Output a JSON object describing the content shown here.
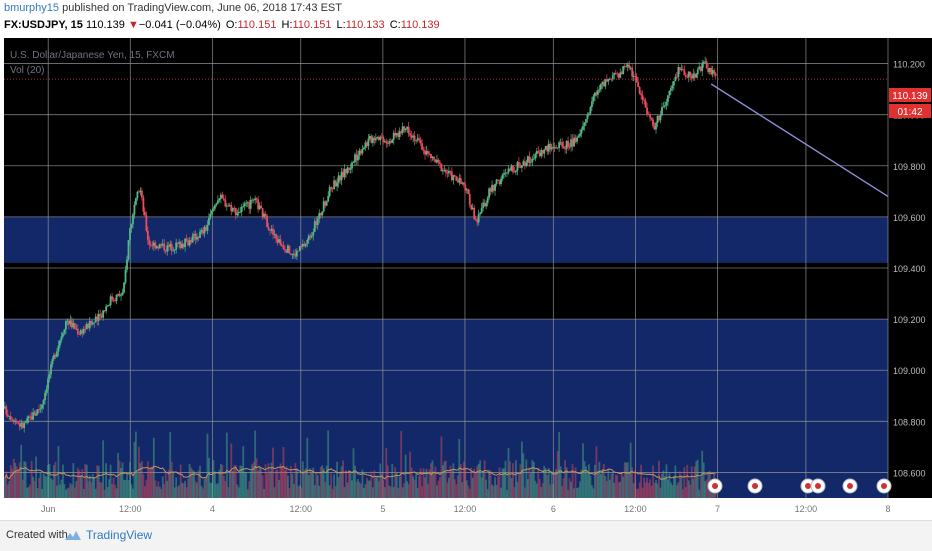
{
  "header": {
    "author": "bmurphy15",
    "published": " published on TradingView.com, June 06, 2018 17:43 EST",
    "symbol": "FX:USDJPY, 15",
    "last": "110.139",
    "change_arrow": "▼",
    "change": "−0.041 (−0.04%)",
    "o_label": "O:",
    "o_value": "110.151",
    "h_label": "H:",
    "h_value": "110.151",
    "l_label": "L:",
    "l_value": "110.133",
    "c_label": "C:",
    "c_value": "110.139"
  },
  "legend": {
    "line1": "U.S. Dollar/Japanese Yen, 15, FXCM",
    "line2": "Vol (20)"
  },
  "price_badge": "110.139",
  "time_badge": "01:42",
  "footer": {
    "created_with": "Created with",
    "brand": "TradingView"
  },
  "colors": {
    "background": "#000000",
    "bull": "#53b987",
    "bear": "#eb4d5c",
    "zone": "#142a6e",
    "grid": "#9a9a9a",
    "trendline": "#8a8fd6",
    "price_line": "#e04040",
    "vol_ma": "#c8935a",
    "accent": "#2f7ac2"
  },
  "chart_data": {
    "type": "candlestick",
    "title": "U.S. Dollar/Japanese Yen, 15, FXCM",
    "ylim": [
      108.5,
      110.3
    ],
    "y_ticks": [
      {
        "value": 110.2,
        "label": "110.200"
      },
      {
        "value": 110.0,
        "label": "110.000"
      },
      {
        "value": 109.8,
        "label": "109.800"
      },
      {
        "value": 109.6,
        "label": "109.600"
      },
      {
        "value": 109.4,
        "label": "109.400"
      },
      {
        "value": 109.2,
        "label": "109.200"
      },
      {
        "value": 109.0,
        "label": "109.000"
      },
      {
        "value": 108.8,
        "label": "108.800"
      },
      {
        "value": 108.6,
        "label": "108.600"
      }
    ],
    "x_ticks": [
      {
        "t": 0.35,
        "label": "Jun"
      },
      {
        "t": 1.0,
        "label": "12:00"
      },
      {
        "t": 1.65,
        "label": "4"
      },
      {
        "t": 2.35,
        "label": "12:00"
      },
      {
        "t": 3.0,
        "label": "5"
      },
      {
        "t": 3.65,
        "label": "12:00"
      },
      {
        "t": 4.35,
        "label": "6"
      },
      {
        "t": 5.0,
        "label": "12:00"
      },
      {
        "t": 5.65,
        "label": "7"
      },
      {
        "t": 6.35,
        "label": "12:00"
      },
      {
        "t": 7.0,
        "label": "8"
      }
    ],
    "grid": true,
    "last_price": 110.139,
    "path_points": [
      [
        0.0,
        108.85
      ],
      [
        0.15,
        108.78
      ],
      [
        0.3,
        108.86
      ],
      [
        0.4,
        109.05
      ],
      [
        0.5,
        109.2
      ],
      [
        0.6,
        109.15
      ],
      [
        0.75,
        109.2
      ],
      [
        0.85,
        109.28
      ],
      [
        0.95,
        109.3
      ],
      [
        1.0,
        109.55
      ],
      [
        1.08,
        109.72
      ],
      [
        1.15,
        109.5
      ],
      [
        1.3,
        109.48
      ],
      [
        1.45,
        109.5
      ],
      [
        1.6,
        109.55
      ],
      [
        1.7,
        109.68
      ],
      [
        1.85,
        109.62
      ],
      [
        2.0,
        109.66
      ],
      [
        2.15,
        109.52
      ],
      [
        2.3,
        109.45
      ],
      [
        2.4,
        109.5
      ],
      [
        2.5,
        109.6
      ],
      [
        2.6,
        109.72
      ],
      [
        2.75,
        109.8
      ],
      [
        2.85,
        109.88
      ],
      [
        2.95,
        109.92
      ],
      [
        3.05,
        109.9
      ],
      [
        3.2,
        109.95
      ],
      [
        3.35,
        109.85
      ],
      [
        3.5,
        109.78
      ],
      [
        3.65,
        109.72
      ],
      [
        3.75,
        109.58
      ],
      [
        3.85,
        109.7
      ],
      [
        4.0,
        109.78
      ],
      [
        4.15,
        109.82
      ],
      [
        4.3,
        109.87
      ],
      [
        4.45,
        109.88
      ],
      [
        4.55,
        109.9
      ],
      [
        4.7,
        110.1
      ],
      [
        4.85,
        110.15
      ],
      [
        4.95,
        110.2
      ],
      [
        5.05,
        110.08
      ],
      [
        5.15,
        109.95
      ],
      [
        5.25,
        110.05
      ],
      [
        5.35,
        110.18
      ],
      [
        5.45,
        110.15
      ],
      [
        5.55,
        110.2
      ],
      [
        5.65,
        110.14
      ]
    ],
    "zones": [
      {
        "from": 109.6,
        "to": 109.42
      },
      {
        "from": 109.2,
        "to": 108.5
      }
    ],
    "trendline": {
      "from": [
        5.6,
        110.12
      ],
      "to": [
        7.0,
        109.68
      ]
    },
    "series": [
      {
        "name": "Vol (20)"
      }
    ]
  }
}
